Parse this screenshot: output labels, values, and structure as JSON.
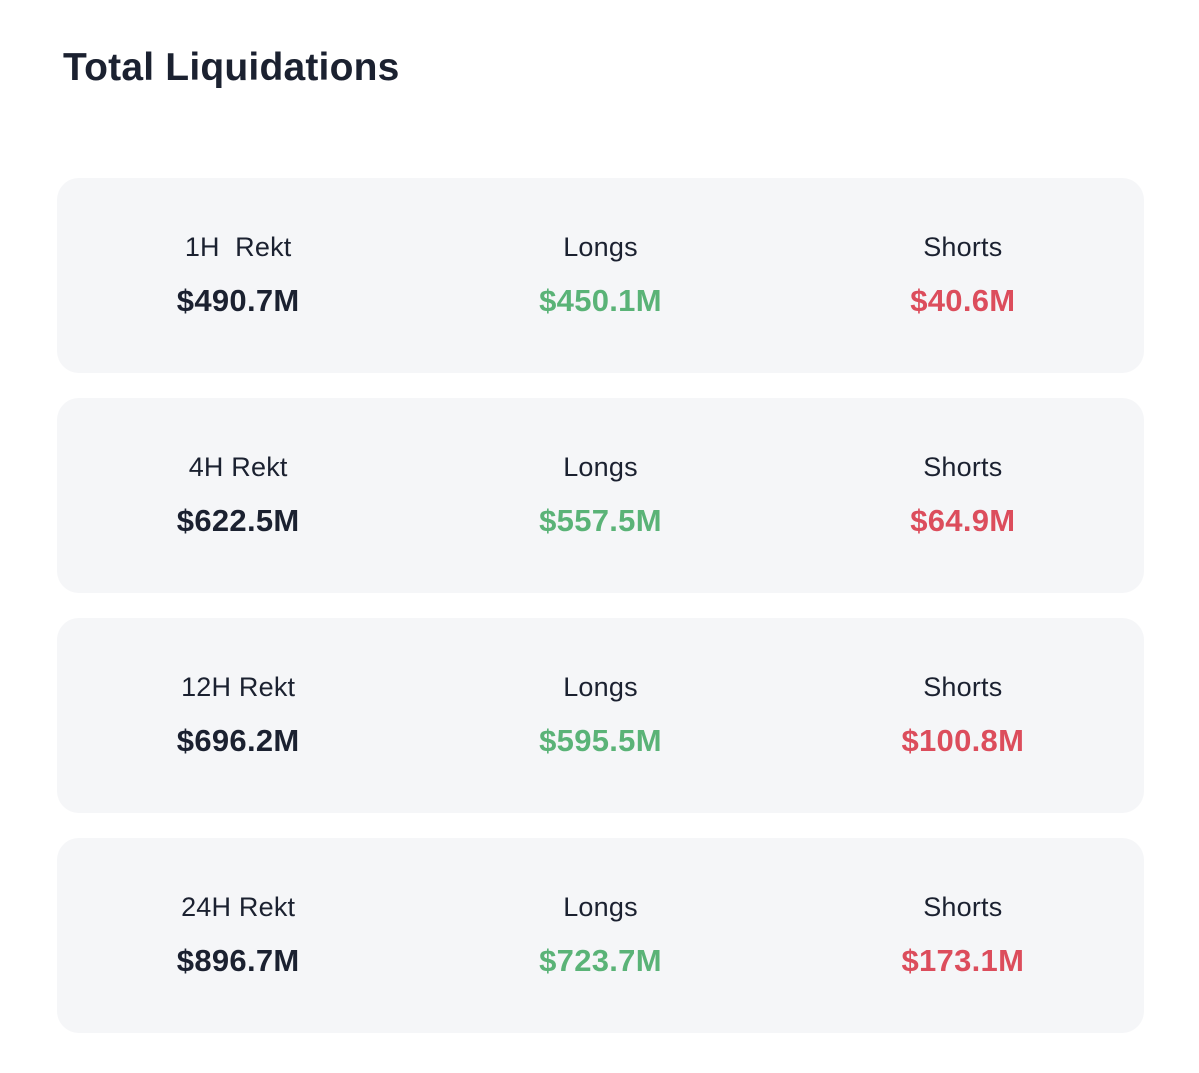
{
  "page": {
    "title": "Total Liquidations"
  },
  "colors": {
    "text": "#1b2130",
    "long": "#5ab377",
    "short": "#dc4d5c",
    "card_bg": "#f5f6f8",
    "page_bg": "#ffffff"
  },
  "cards": [
    {
      "period_label": "1H  Rekt",
      "total": "$490.7M",
      "longs_label": "Longs",
      "longs_value": "$450.1M",
      "shorts_label": "Shorts",
      "shorts_value": "$40.6M"
    },
    {
      "period_label": "4H Rekt",
      "total": "$622.5M",
      "longs_label": "Longs",
      "longs_value": "$557.5M",
      "shorts_label": "Shorts",
      "shorts_value": "$64.9M"
    },
    {
      "period_label": "12H Rekt",
      "total": "$696.2M",
      "longs_label": "Longs",
      "longs_value": "$595.5M",
      "shorts_label": "Shorts",
      "shorts_value": "$100.8M"
    },
    {
      "period_label": "24H Rekt",
      "total": "$896.7M",
      "longs_label": "Longs",
      "longs_value": "$723.7M",
      "shorts_label": "Shorts",
      "shorts_value": "$173.1M"
    }
  ]
}
